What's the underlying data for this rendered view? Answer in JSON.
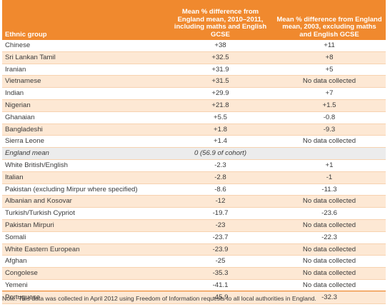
{
  "table": {
    "headers": [
      "Ethnic group",
      "Mean % difference from England mean, 2010–2011, including maths and English GCSE",
      "Mean % difference from England mean, 2003, excluding maths and English GCSE"
    ],
    "rows": [
      {
        "group": "Chinese",
        "v2011": "+38",
        "v2003": "+11"
      },
      {
        "group": "Sri Lankan Tamil",
        "v2011": "+32.5",
        "v2003": "+8"
      },
      {
        "group": "Iranian",
        "v2011": "+31.9",
        "v2003": "+5"
      },
      {
        "group": "Vietnamese",
        "v2011": "+31.5",
        "v2003": "No data collected"
      },
      {
        "group": "Indian",
        "v2011": "+29.9",
        "v2003": "+7"
      },
      {
        "group": "Nigerian",
        "v2011": "+21.8",
        "v2003": "+1.5"
      },
      {
        "group": "Ghanaian",
        "v2011": "+5.5",
        "v2003": "-0.8"
      },
      {
        "group": "Bangladeshi",
        "v2011": "+1.8",
        "v2003": "-9.3"
      },
      {
        "group": "Sierra Leone",
        "v2011": "+1.4",
        "v2003": "No data collected"
      }
    ],
    "england_mean": {
      "group": "England mean",
      "value": "0 (56.9 of cohort)"
    },
    "rows_below": [
      {
        "group": "White British/English",
        "v2011": "-2.3",
        "v2003": "+1"
      },
      {
        "group": "Italian",
        "v2011": "-2.8",
        "v2003": "-1"
      },
      {
        "group": "Pakistan (excluding Mirpur where specified)",
        "v2011": "-8.6",
        "v2003": "-11.3"
      },
      {
        "group": "Albanian and Kosovar",
        "v2011": "-12",
        "v2003": "No data collected"
      },
      {
        "group": "Turkish/Turkish Cypriot",
        "v2011": "-19.7",
        "v2003": "-23.6"
      },
      {
        "group": "Pakistan Mirpuri",
        "v2011": "-23",
        "v2003": "No data collected"
      },
      {
        "group": "Somali",
        "v2011": "-23.7",
        "v2003": "-22.3"
      },
      {
        "group": "White Eastern European",
        "v2011": "-23.9",
        "v2003": "No data collected"
      },
      {
        "group": "Afghan",
        "v2011": "-25",
        "v2003": "No data collected"
      },
      {
        "group": "Congolese",
        "v2011": "-35.3",
        "v2003": "No data collected"
      },
      {
        "group": "Yemeni",
        "v2011": "-41.1",
        "v2003": "No data collected"
      },
      {
        "group": "Portuguese",
        "v2011": "-45.9",
        "v2003": "-32.3"
      }
    ]
  },
  "note": "Note: This data was collected in April 2012 using Freedom of Information requests to all local authorities in England.",
  "colors": {
    "header": "#f0892e",
    "stripe": "#fde8d4",
    "mean_row": "#ececec"
  }
}
